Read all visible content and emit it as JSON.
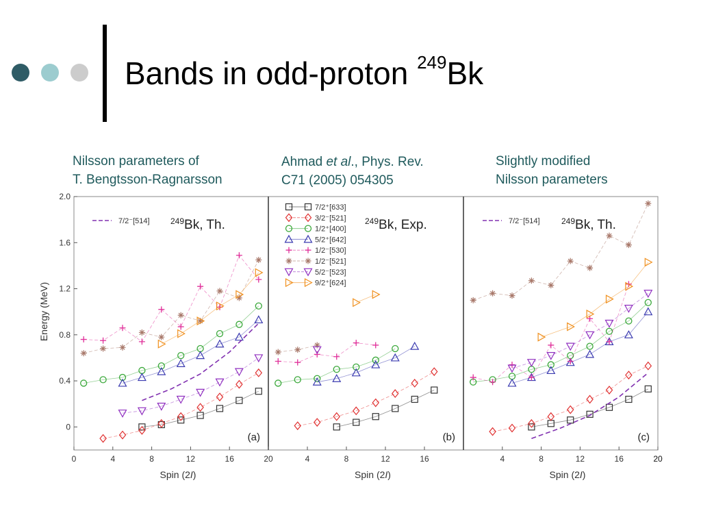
{
  "slide": {
    "title_main": "Bands in odd-proton ",
    "title_sup": "249",
    "title_tail": "Bk",
    "bullet_colors": [
      "#2f5c66",
      "#9ccccf",
      "#cccccc"
    ],
    "captions": {
      "a_line1": "Nilsson parameters of",
      "a_line2": "T. Bengtsson-Ragnarsson",
      "b_line1_pre": "Ahmad ",
      "b_line1_em": "et al",
      "b_line1_post": "., Phys. Rev.",
      "b_line2": "C71 (2005) 054305",
      "c_line1": "Slightly modified",
      "c_line2": "Nilsson parameters"
    }
  },
  "chart_data": {
    "type": "scatter",
    "ylabel": "Energy (MeV)",
    "ylim": [
      -0.2,
      2.0
    ],
    "yticks": [
      "2.0",
      "1.6",
      "1.2",
      "0.8",
      "0.4",
      "0"
    ],
    "ytick_values": [
      2.0,
      1.6,
      1.2,
      0.8,
      0.4,
      0
    ],
    "xlim": [
      0,
      20
    ],
    "xticks": [
      "0",
      "4",
      "8",
      "12",
      "16",
      "20"
    ],
    "xtick_values": [
      0,
      4,
      8,
      12,
      16,
      20
    ],
    "legend": [
      {
        "label": "7/2⁺[633]",
        "marker": "square",
        "color": "#333333"
      },
      {
        "label": "3/2⁻[521]",
        "marker": "diamond",
        "color": "#e03030"
      },
      {
        "label": "1/2⁺[400]",
        "marker": "circle",
        "color": "#3aa83a"
      },
      {
        "label": "5/2⁺[642]",
        "marker": "triangle-up",
        "color": "#3b3bb0"
      },
      {
        "label": "1/2⁻[530]",
        "marker": "plus",
        "color": "#e0309a"
      },
      {
        "label": "1/2⁻[521]",
        "marker": "asterisk",
        "color": "#a8786a"
      },
      {
        "label": "5/2⁻[523]",
        "marker": "triangle-down",
        "color": "#9030c0"
      },
      {
        "label": "9/2⁺[624]",
        "marker": "triangle-right",
        "color": "#f0901e"
      }
    ],
    "panels": [
      {
        "id": "a",
        "label": "(a)",
        "header_sup": "249",
        "header": "Bk, Th.",
        "xlabel": "Spin (2I)",
        "xmax": 19,
        "dashed_label": "7/2⁻[514]",
        "dashed_color": "#8030b0",
        "dashed": [
          [
            7,
            0.23
          ],
          [
            10,
            0.33
          ],
          [
            13,
            0.46
          ],
          [
            16,
            0.65
          ],
          [
            19,
            0.9
          ]
        ],
        "series": [
          {
            "name": "7/2⁺[633]",
            "x": [
              7,
              9,
              11,
              13,
              15,
              17,
              19
            ],
            "y": [
              0.0,
              0.02,
              0.06,
              0.1,
              0.16,
              0.23,
              0.31
            ]
          },
          {
            "name": "3/2⁻[521]",
            "x": [
              3,
              5,
              7,
              9,
              11,
              13,
              15,
              17,
              19
            ],
            "y": [
              -0.1,
              -0.07,
              -0.03,
              0.03,
              0.09,
              0.17,
              0.26,
              0.37,
              0.47
            ]
          },
          {
            "name": "1/2⁺[400]",
            "x": [
              1,
              3,
              5,
              7,
              9,
              11,
              13,
              15,
              17,
              19
            ],
            "y": [
              0.38,
              0.41,
              0.43,
              0.49,
              0.53,
              0.62,
              0.68,
              0.81,
              0.89,
              1.05
            ]
          },
          {
            "name": "5/2⁺[642]",
            "x": [
              5,
              7,
              9,
              11,
              13,
              15,
              17,
              19
            ],
            "y": [
              0.38,
              0.43,
              0.48,
              0.55,
              0.62,
              0.72,
              0.78,
              0.93
            ]
          },
          {
            "name": "1/2⁻[530]",
            "x": [
              1,
              3,
              5,
              7,
              9,
              11,
              13,
              15,
              17,
              19
            ],
            "y": [
              0.76,
              0.75,
              0.86,
              0.74,
              1.02,
              0.87,
              1.22,
              1.04,
              1.49,
              1.28
            ]
          },
          {
            "name": "1/2⁻[521]",
            "x": [
              1,
              3,
              5,
              7,
              9,
              11,
              13,
              15,
              17,
              19
            ],
            "y": [
              0.64,
              0.68,
              0.69,
              0.82,
              0.78,
              0.97,
              0.92,
              1.18,
              1.12,
              1.45
            ]
          },
          {
            "name": "5/2⁻[523]",
            "x": [
              5,
              7,
              9,
              11,
              13,
              15,
              17,
              19
            ],
            "y": [
              0.12,
              0.14,
              0.18,
              0.24,
              0.3,
              0.39,
              0.48,
              0.6
            ]
          },
          {
            "name": "9/2⁺[624]",
            "x": [
              9,
              11,
              13,
              15,
              17,
              19
            ],
            "y": [
              0.72,
              0.81,
              0.92,
              1.05,
              1.15,
              1.34
            ]
          }
        ]
      },
      {
        "id": "b",
        "label": "(b)",
        "header_sup": "249",
        "header": "Bk, Exp.",
        "xlabel": "Spin (2I)",
        "xmax": 18,
        "series": [
          {
            "name": "7/2⁺[633]",
            "x": [
              7,
              9,
              11,
              13,
              15,
              17
            ],
            "y": [
              0.0,
              0.04,
              0.09,
              0.16,
              0.24,
              0.32
            ]
          },
          {
            "name": "3/2⁻[521]",
            "x": [
              3,
              5,
              7,
              9,
              11,
              13,
              15,
              17
            ],
            "y": [
              0.01,
              0.04,
              0.09,
              0.14,
              0.21,
              0.29,
              0.38,
              0.48
            ]
          },
          {
            "name": "1/2⁺[400]",
            "x": [
              1,
              3,
              5,
              7,
              9,
              11,
              13
            ],
            "y": [
              0.38,
              0.41,
              0.42,
              0.5,
              0.52,
              0.58,
              0.68
            ]
          },
          {
            "name": "5/2⁺[642]",
            "x": [
              5,
              7,
              9,
              11,
              13,
              15
            ],
            "y": [
              0.39,
              0.42,
              0.47,
              0.54,
              0.6,
              0.7
            ]
          },
          {
            "name": "1/2⁻[530]",
            "x": [
              1,
              3,
              5,
              7,
              9,
              11
            ],
            "y": [
              0.57,
              0.56,
              0.63,
              0.61,
              0.73,
              0.71
            ]
          },
          {
            "name": "1/2⁻[521]",
            "x": [
              1,
              3,
              5
            ],
            "y": [
              0.65,
              0.67,
              0.71
            ]
          },
          {
            "name": "5/2⁻[523]",
            "x": [
              5
            ],
            "y": [
              0.67
            ]
          },
          {
            "name": "9/2⁺[624]",
            "x": [
              9,
              11
            ],
            "y": [
              1.08,
              1.15
            ]
          }
        ]
      },
      {
        "id": "c",
        "label": "(c)",
        "header_sup": "249",
        "header": "Bk, Th.",
        "xlabel": "Spin (2I)",
        "xmax": 19,
        "dashed_label": "7/2⁻[514]",
        "dashed_color": "#8030b0",
        "dashed": [
          [
            7,
            -0.1
          ],
          [
            10,
            -0.01
          ],
          [
            13,
            0.1
          ],
          [
            16,
            0.26
          ],
          [
            19,
            0.47
          ]
        ],
        "series": [
          {
            "name": "7/2⁺[633]",
            "x": [
              7,
              9,
              11,
              13,
              15,
              17,
              19
            ],
            "y": [
              0.0,
              0.03,
              0.06,
              0.11,
              0.17,
              0.24,
              0.33
            ]
          },
          {
            "name": "3/2⁻[521]",
            "x": [
              3,
              5,
              7,
              9,
              11,
              13,
              15,
              17,
              19
            ],
            "y": [
              -0.04,
              -0.01,
              0.03,
              0.09,
              0.15,
              0.24,
              0.32,
              0.45,
              0.53
            ]
          },
          {
            "name": "1/2⁺[400]",
            "x": [
              1,
              3,
              5,
              7,
              9,
              11,
              13,
              15,
              17,
              19
            ],
            "y": [
              0.39,
              0.41,
              0.44,
              0.5,
              0.54,
              0.62,
              0.7,
              0.83,
              0.92,
              1.08
            ]
          },
          {
            "name": "5/2⁺[642]",
            "x": [
              5,
              7,
              9,
              11,
              13,
              15,
              17,
              19
            ],
            "y": [
              0.38,
              0.43,
              0.49,
              0.56,
              0.63,
              0.74,
              0.8,
              1.0
            ]
          },
          {
            "name": "1/2⁻[530]",
            "x": [
              1,
              3,
              5,
              7,
              9,
              11,
              13,
              15,
              17
            ],
            "y": [
              0.43,
              0.39,
              0.54,
              0.43,
              0.71,
              0.57,
              0.94,
              0.74,
              1.24
            ]
          },
          {
            "name": "1/2⁻[521]",
            "x": [
              1,
              3,
              5,
              7,
              9,
              11,
              13,
              15,
              17,
              19
            ],
            "y": [
              1.1,
              1.16,
              1.14,
              1.27,
              1.23,
              1.44,
              1.38,
              1.66,
              1.58,
              1.94
            ]
          },
          {
            "name": "5/2⁻[523]",
            "x": [
              5,
              7,
              9,
              11,
              13,
              15,
              17,
              19
            ],
            "y": [
              0.51,
              0.56,
              0.62,
              0.7,
              0.8,
              0.9,
              1.03,
              1.16
            ]
          },
          {
            "name": "9/2⁺[624]",
            "x": [
              8,
              11,
              13,
              15,
              17,
              19
            ],
            "y": [
              0.78,
              0.87,
              0.98,
              1.11,
              1.22,
              1.43
            ]
          }
        ]
      }
    ]
  }
}
